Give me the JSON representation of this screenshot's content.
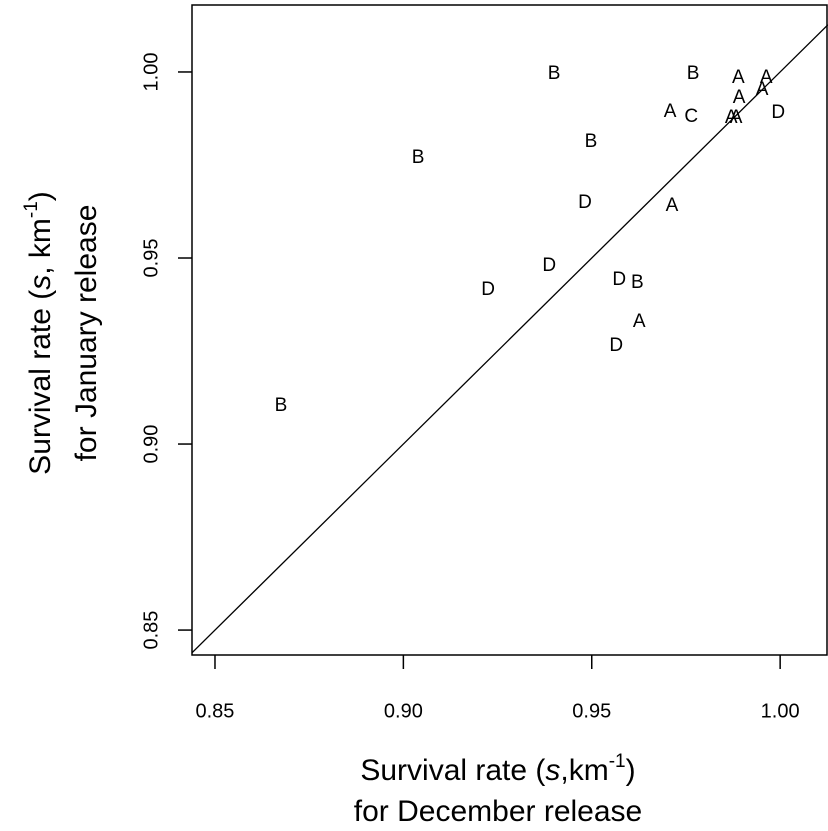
{
  "chart_data": {
    "type": "scatter",
    "xlabel_parts": [
      "Survival rate (",
      "s",
      ",km",
      "-1",
      ")"
    ],
    "xlabel_line2": "for December release",
    "ylabel_parts": [
      "Survival rate (",
      "s",
      ", km",
      "-1",
      ")"
    ],
    "ylabel_line2": "for January release",
    "xlim": [
      0.8439,
      1.0127
    ],
    "ylim": [
      0.8433,
      1.018
    ],
    "xticks": [
      0.85,
      {
        "value": 0.9,
        "label": "0.90"
      },
      0.95,
      {
        "value": 1.0,
        "label": "1.00"
      }
    ],
    "yticks": [
      0.85,
      {
        "value": 0.9,
        "label": "0.90"
      },
      0.95,
      {
        "value": 1.0,
        "label": "1.00"
      }
    ],
    "color": "#000000",
    "labels": [
      "B",
      "B",
      "A",
      "C",
      "A",
      "A",
      "A",
      "A",
      "A",
      "D",
      "B",
      "B",
      "D",
      "A",
      "D",
      "D",
      "B",
      "D",
      "A",
      "D",
      "B",
      "A"
    ],
    "x": [
      0.94,
      0.9769,
      0.9708,
      0.9764,
      0.987,
      0.9883,
      0.9891,
      0.9952,
      0.9963,
      0.9995,
      0.9498,
      0.9039,
      0.9482,
      0.9713,
      0.9387,
      0.9573,
      0.9621,
      0.9225,
      0.9626,
      0.9565,
      0.8675,
      0.9889
    ],
    "y": [
      0.9995,
      0.9995,
      0.9892,
      0.9879,
      0.9876,
      0.9876,
      0.993,
      0.9952,
      0.9984,
      0.989,
      0.9812,
      0.9769,
      0.9648,
      0.964,
      0.9478,
      0.9441,
      0.9433,
      0.9414,
      0.9328,
      0.9263,
      0.9102,
      0.9984
    ]
  }
}
